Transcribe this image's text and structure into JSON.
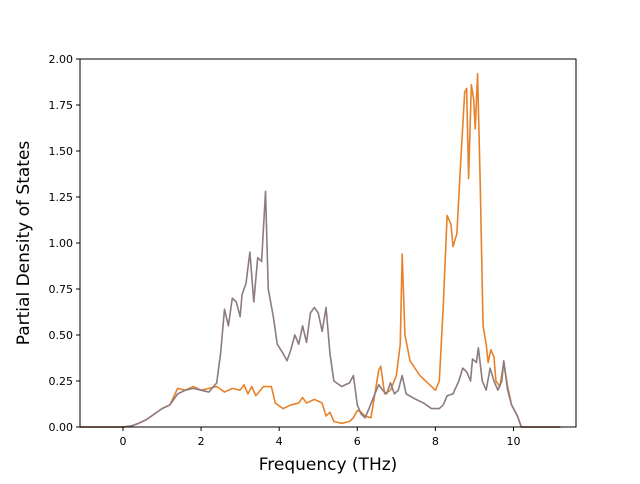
{
  "chart_data": {
    "type": "line",
    "title": "",
    "xlabel": "Frequency (THz)",
    "ylabel": "Partial Density of States",
    "xlim": [
      -1.1,
      11.6
    ],
    "ylim": [
      0,
      2.0
    ],
    "xticks": [
      0,
      2,
      4,
      6,
      8,
      10
    ],
    "yticks": [
      0.0,
      0.25,
      0.5,
      0.75,
      1.0,
      1.25,
      1.5,
      1.75,
      2.0
    ],
    "ytick_labels": [
      "0.00",
      "0.25",
      "0.50",
      "0.75",
      "1.00",
      "1.25",
      "1.50",
      "1.75",
      "2.00"
    ],
    "grid": false,
    "legend": null,
    "series": [
      {
        "color": "#e8822a",
        "points": [
          [
            -1.1,
            0.0
          ],
          [
            0.0,
            0.0
          ],
          [
            0.2,
            0.005
          ],
          [
            0.4,
            0.02
          ],
          [
            0.6,
            0.04
          ],
          [
            0.8,
            0.07
          ],
          [
            1.0,
            0.1
          ],
          [
            1.2,
            0.12
          ],
          [
            1.4,
            0.21
          ],
          [
            1.6,
            0.2
          ],
          [
            1.8,
            0.22
          ],
          [
            2.0,
            0.2
          ],
          [
            2.2,
            0.21
          ],
          [
            2.4,
            0.22
          ],
          [
            2.6,
            0.19
          ],
          [
            2.8,
            0.21
          ],
          [
            3.0,
            0.2
          ],
          [
            3.1,
            0.23
          ],
          [
            3.2,
            0.18
          ],
          [
            3.3,
            0.22
          ],
          [
            3.4,
            0.17
          ],
          [
            3.6,
            0.22
          ],
          [
            3.8,
            0.22
          ],
          [
            3.9,
            0.13
          ],
          [
            4.1,
            0.1
          ],
          [
            4.3,
            0.12
          ],
          [
            4.5,
            0.13
          ],
          [
            4.6,
            0.16
          ],
          [
            4.7,
            0.13
          ],
          [
            4.9,
            0.15
          ],
          [
            5.1,
            0.13
          ],
          [
            5.2,
            0.06
          ],
          [
            5.3,
            0.08
          ],
          [
            5.4,
            0.03
          ],
          [
            5.6,
            0.02
          ],
          [
            5.8,
            0.03
          ],
          [
            5.9,
            0.05
          ],
          [
            6.0,
            0.09
          ],
          [
            6.1,
            0.08
          ],
          [
            6.2,
            0.06
          ],
          [
            6.35,
            0.05
          ],
          [
            6.45,
            0.18
          ],
          [
            6.55,
            0.31
          ],
          [
            6.6,
            0.33
          ],
          [
            6.7,
            0.18
          ],
          [
            6.85,
            0.2
          ],
          [
            7.0,
            0.28
          ],
          [
            7.1,
            0.45
          ],
          [
            7.15,
            0.94
          ],
          [
            7.22,
            0.5
          ],
          [
            7.35,
            0.36
          ],
          [
            7.6,
            0.28
          ],
          [
            7.8,
            0.24
          ],
          [
            8.0,
            0.2
          ],
          [
            8.1,
            0.25
          ],
          [
            8.2,
            0.65
          ],
          [
            8.3,
            1.15
          ],
          [
            8.4,
            1.1
          ],
          [
            8.45,
            0.98
          ],
          [
            8.55,
            1.05
          ],
          [
            8.65,
            1.45
          ],
          [
            8.75,
            1.82
          ],
          [
            8.8,
            1.84
          ],
          [
            8.85,
            1.35
          ],
          [
            8.92,
            1.86
          ],
          [
            8.98,
            1.78
          ],
          [
            9.02,
            1.62
          ],
          [
            9.08,
            1.92
          ],
          [
            9.15,
            1.3
          ],
          [
            9.22,
            0.55
          ],
          [
            9.3,
            0.45
          ],
          [
            9.35,
            0.35
          ],
          [
            9.42,
            0.42
          ],
          [
            9.5,
            0.38
          ],
          [
            9.55,
            0.25
          ],
          [
            9.65,
            0.22
          ],
          [
            9.75,
            0.35
          ],
          [
            9.85,
            0.22
          ],
          [
            9.95,
            0.12
          ],
          [
            10.1,
            0.06
          ],
          [
            10.2,
            0.0
          ],
          [
            11.2,
            0.0
          ]
        ]
      },
      {
        "color": "#8c7b80",
        "points": [
          [
            -1.1,
            0.0
          ],
          [
            0.0,
            0.0
          ],
          [
            0.2,
            0.005
          ],
          [
            0.4,
            0.02
          ],
          [
            0.6,
            0.04
          ],
          [
            0.8,
            0.07
          ],
          [
            1.0,
            0.1
          ],
          [
            1.2,
            0.12
          ],
          [
            1.4,
            0.18
          ],
          [
            1.6,
            0.2
          ],
          [
            1.8,
            0.21
          ],
          [
            2.0,
            0.2
          ],
          [
            2.2,
            0.19
          ],
          [
            2.4,
            0.24
          ],
          [
            2.5,
            0.4
          ],
          [
            2.6,
            0.64
          ],
          [
            2.7,
            0.55
          ],
          [
            2.8,
            0.7
          ],
          [
            2.9,
            0.68
          ],
          [
            3.0,
            0.6
          ],
          [
            3.05,
            0.72
          ],
          [
            3.15,
            0.78
          ],
          [
            3.25,
            0.95
          ],
          [
            3.35,
            0.68
          ],
          [
            3.45,
            0.92
          ],
          [
            3.55,
            0.9
          ],
          [
            3.65,
            1.28
          ],
          [
            3.72,
            0.75
          ],
          [
            3.85,
            0.6
          ],
          [
            3.95,
            0.45
          ],
          [
            4.1,
            0.4
          ],
          [
            4.2,
            0.36
          ],
          [
            4.3,
            0.42
          ],
          [
            4.4,
            0.5
          ],
          [
            4.5,
            0.45
          ],
          [
            4.6,
            0.55
          ],
          [
            4.7,
            0.46
          ],
          [
            4.8,
            0.62
          ],
          [
            4.9,
            0.65
          ],
          [
            5.0,
            0.62
          ],
          [
            5.1,
            0.52
          ],
          [
            5.2,
            0.65
          ],
          [
            5.3,
            0.4
          ],
          [
            5.4,
            0.25
          ],
          [
            5.6,
            0.22
          ],
          [
            5.8,
            0.24
          ],
          [
            5.9,
            0.28
          ],
          [
            6.0,
            0.12
          ],
          [
            6.1,
            0.07
          ],
          [
            6.2,
            0.05
          ],
          [
            6.3,
            0.1
          ],
          [
            6.45,
            0.18
          ],
          [
            6.55,
            0.23
          ],
          [
            6.65,
            0.2
          ],
          [
            6.75,
            0.18
          ],
          [
            6.85,
            0.24
          ],
          [
            6.95,
            0.18
          ],
          [
            7.05,
            0.2
          ],
          [
            7.15,
            0.28
          ],
          [
            7.25,
            0.18
          ],
          [
            7.5,
            0.15
          ],
          [
            7.7,
            0.13
          ],
          [
            7.9,
            0.1
          ],
          [
            8.1,
            0.1
          ],
          [
            8.2,
            0.12
          ],
          [
            8.3,
            0.17
          ],
          [
            8.45,
            0.18
          ],
          [
            8.6,
            0.25
          ],
          [
            8.7,
            0.32
          ],
          [
            8.8,
            0.3
          ],
          [
            8.9,
            0.25
          ],
          [
            8.95,
            0.37
          ],
          [
            9.05,
            0.35
          ],
          [
            9.1,
            0.43
          ],
          [
            9.2,
            0.25
          ],
          [
            9.3,
            0.2
          ],
          [
            9.4,
            0.32
          ],
          [
            9.5,
            0.25
          ],
          [
            9.6,
            0.2
          ],
          [
            9.7,
            0.25
          ],
          [
            9.75,
            0.36
          ],
          [
            9.85,
            0.2
          ],
          [
            9.95,
            0.12
          ],
          [
            10.1,
            0.06
          ],
          [
            10.2,
            0.0
          ],
          [
            11.2,
            0.0
          ]
        ]
      }
    ]
  }
}
